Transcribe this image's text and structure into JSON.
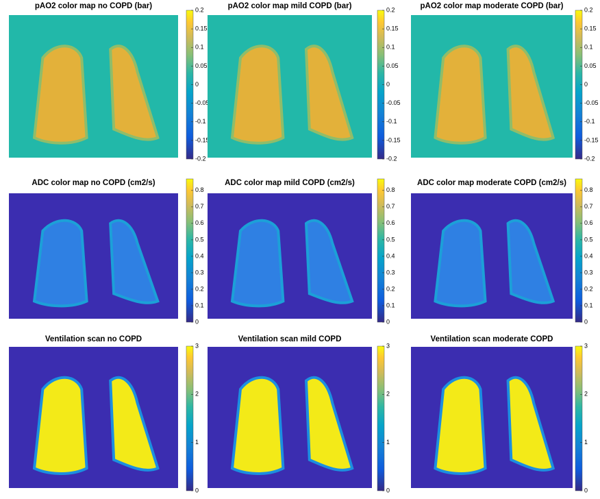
{
  "chart_data": [
    {
      "type": "heatmap",
      "title": "pAO2 color map no COPD (bar)",
      "clim": [
        -0.2,
        0.2
      ],
      "cticks": [
        -0.2,
        -0.15,
        -0.1,
        -0.05,
        0,
        0.05,
        0.1,
        0.15,
        0.2
      ]
    },
    {
      "type": "heatmap",
      "title": "pAO2 color map mild COPD (bar)",
      "clim": [
        -0.2,
        0.2
      ],
      "cticks": [
        -0.2,
        -0.15,
        -0.1,
        -0.05,
        0,
        0.05,
        0.1,
        0.15,
        0.2
      ]
    },
    {
      "type": "heatmap",
      "title": "pAO2 color map moderate COPD (bar)",
      "clim": [
        -0.2,
        0.2
      ],
      "cticks": [
        -0.2,
        -0.15,
        -0.1,
        -0.05,
        0,
        0.05,
        0.1,
        0.15,
        0.2
      ]
    },
    {
      "type": "heatmap",
      "title": "ADC color map no COPD (cm2/s)",
      "clim": [
        0,
        0.87
      ],
      "cticks": [
        0,
        0.1,
        0.2,
        0.3,
        0.4,
        0.5,
        0.6,
        0.7,
        0.8
      ]
    },
    {
      "type": "heatmap",
      "title": "ADC color map mild COPD (cm2/s)",
      "clim": [
        0,
        0.87
      ],
      "cticks": [
        0,
        0.1,
        0.2,
        0.3,
        0.4,
        0.5,
        0.6,
        0.7,
        0.8
      ]
    },
    {
      "type": "heatmap",
      "title": "ADC color map moderate COPD (cm2/s)",
      "clim": [
        0,
        0.87
      ],
      "cticks": [
        0,
        0.1,
        0.2,
        0.3,
        0.4,
        0.5,
        0.6,
        0.7,
        0.8
      ]
    },
    {
      "type": "heatmap",
      "title": "Ventilation scan no COPD",
      "clim": [
        0,
        3
      ],
      "cticks": [
        0,
        1,
        2,
        3
      ]
    },
    {
      "type": "heatmap",
      "title": "Ventilation scan mild COPD",
      "clim": [
        0,
        3
      ],
      "cticks": [
        0,
        1,
        2,
        3
      ]
    },
    {
      "type": "heatmap",
      "title": "Ventilation scan moderate COPD",
      "clim": [
        0,
        3
      ],
      "cticks": [
        0,
        1,
        2,
        3
      ]
    }
  ]
}
